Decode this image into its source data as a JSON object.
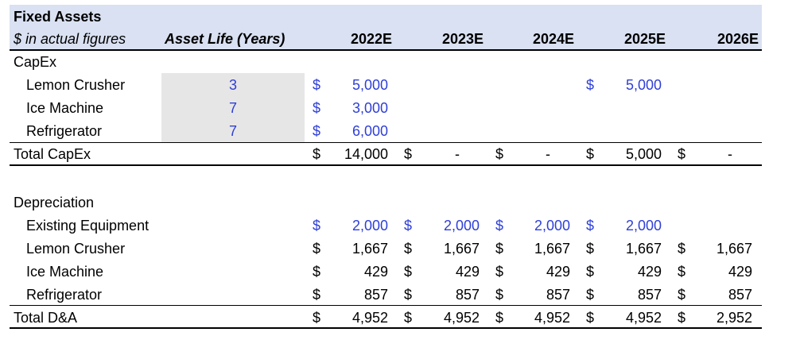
{
  "header": {
    "title": "Fixed Assets",
    "units": "$ in actual figures",
    "asset_life": "Asset Life (Years)",
    "years": [
      "2022E",
      "2023E",
      "2024E",
      "2025E",
      "2026E"
    ]
  },
  "capex": {
    "label": "CapEx",
    "rows": [
      {
        "name": "Lemon Crusher",
        "life": "3",
        "cells": [
          "5,000",
          "",
          "",
          "5,000",
          ""
        ],
        "color": "blue"
      },
      {
        "name": "Ice Machine",
        "life": "7",
        "cells": [
          "3,000",
          "",
          "",
          "",
          ""
        ],
        "color": "blue"
      },
      {
        "name": "Refrigerator",
        "life": "7",
        "cells": [
          "6,000",
          "",
          "",
          "",
          ""
        ],
        "color": "blue"
      }
    ],
    "total": {
      "name": "Total CapEx",
      "cells": [
        "14,000",
        "-",
        "-",
        "5,000",
        "-"
      ]
    }
  },
  "depreciation": {
    "label": "Depreciation",
    "rows": [
      {
        "name": "Existing Equipment",
        "cells": [
          "2,000",
          "2,000",
          "2,000",
          "2,000",
          ""
        ],
        "color": "blue"
      },
      {
        "name": "Lemon Crusher",
        "cells": [
          "1,667",
          "1,667",
          "1,667",
          "1,667",
          "1,667"
        ],
        "color": "black"
      },
      {
        "name": "Ice Machine",
        "cells": [
          "429",
          "429",
          "429",
          "429",
          "429"
        ],
        "color": "black"
      },
      {
        "name": "Refrigerator",
        "cells": [
          "857",
          "857",
          "857",
          "857",
          "857"
        ],
        "color": "black"
      }
    ],
    "total": {
      "name": "Total D&A",
      "cells": [
        "4,952",
        "4,952",
        "4,952",
        "4,952",
        "2,952"
      ]
    }
  },
  "currency_symbol": "$",
  "colors": {
    "header_fill": "#d9e1f2",
    "input_fill": "#e7e6e6",
    "input_text": "#2e3fd6"
  }
}
